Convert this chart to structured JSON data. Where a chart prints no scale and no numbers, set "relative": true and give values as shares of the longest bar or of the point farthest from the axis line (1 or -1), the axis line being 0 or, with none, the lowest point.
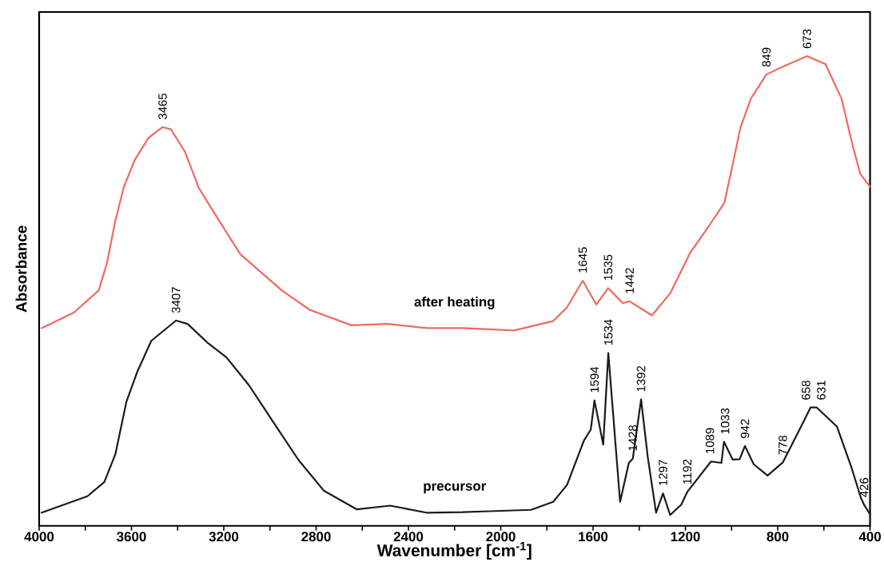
{
  "chart_data": {
    "type": "line",
    "relative": true,
    "xlabel": "Wavenumber [cm$^{-1}$]",
    "ylabel": "Absorbance",
    "marker": "none",
    "xlim": [
      4000,
      400
    ],
    "xticks": [
      4000,
      {
        "value": 3800,
        "label": null
      },
      3600,
      {
        "value": 3400,
        "label": null
      },
      3200,
      {
        "value": 3000,
        "label": null
      },
      2800,
      {
        "value": 2600,
        "label": null
      },
      2400,
      {
        "value": 2200,
        "label": null
      },
      2000,
      {
        "value": 1800,
        "label": null
      },
      1600,
      {
        "value": 1400,
        "label": null
      },
      1200,
      {
        "value": 1000,
        "label": null
      },
      800,
      {
        "value": 600,
        "label": null
      },
      400
    ],
    "series": [
      {
        "name": "after heating",
        "color": "#ef6a60",
        "x": [
          3989,
          3850,
          3742,
          3706,
          3670,
          3634,
          3586,
          3526,
          3465,
          3429,
          3369,
          3309,
          3249,
          3128,
          2948,
          2828,
          2647,
          2491,
          2322,
          2165,
          1942,
          1773,
          1713,
          1645,
          1586,
          1535,
          1471,
          1442,
          1345,
          1266,
          1181,
          1100,
          1031,
          996,
          962,
          916,
          849,
          777,
          673,
          593,
          524,
          477,
          443,
          400
        ],
        "values": [
          0.421,
          0.454,
          0.501,
          0.56,
          0.649,
          0.72,
          0.779,
          0.826,
          0.849,
          0.844,
          0.797,
          0.72,
          0.672,
          0.578,
          0.501,
          0.46,
          0.427,
          0.43,
          0.421,
          0.421,
          0.416,
          0.436,
          0.465,
          0.522,
          0.471,
          0.506,
          0.474,
          0.478,
          0.448,
          0.495,
          0.58,
          0.637,
          0.688,
          0.767,
          0.847,
          0.91,
          0.961,
          0.978,
          1.0,
          0.983,
          0.91,
          0.813,
          0.75,
          0.722
        ]
      },
      {
        "name": "precursor",
        "color": "#1a1a1a",
        "x": [
          3989,
          3791,
          3718,
          3670,
          3622,
          3574,
          3514,
          3407,
          3357,
          3273,
          3189,
          3092,
          2972,
          2876,
          2767,
          2623,
          2479,
          2322,
          2165,
          2050,
          1869,
          1773,
          1713,
          1640,
          1610,
          1594,
          1556,
          1534,
          1483,
          1445,
          1428,
          1392,
          1363,
          1327,
          1297,
          1266,
          1218,
          1192,
          1089,
          1044,
          1033,
          995,
          965,
          942,
          904,
          844,
          778,
          687,
          658,
          631,
          543,
          483,
          440,
          426,
          400
        ],
        "values": [
          0.028,
          0.063,
          0.093,
          0.152,
          0.264,
          0.329,
          0.394,
          0.437,
          0.43,
          0.391,
          0.359,
          0.3,
          0.211,
          0.14,
          0.075,
          0.035,
          0.043,
          0.028,
          0.029,
          0.031,
          0.034,
          0.051,
          0.087,
          0.181,
          0.205,
          0.267,
          0.173,
          0.368,
          0.051,
          0.134,
          0.143,
          0.269,
          0.146,
          0.028,
          0.069,
          0.023,
          0.045,
          0.072,
          0.137,
          0.134,
          0.179,
          0.141,
          0.142,
          0.17,
          0.131,
          0.107,
          0.135,
          0.223,
          0.252,
          0.252,
          0.211,
          0.128,
          0.06,
          0.045,
          0.025
        ]
      }
    ],
    "annotations": [
      {
        "text": "3465",
        "x": 3465,
        "y": 0.849
      },
      {
        "text": "1645",
        "x": 1645,
        "y": 0.522
      },
      {
        "text": "1535",
        "x": 1535,
        "y": 0.506
      },
      {
        "text": "1442",
        "x": 1442,
        "y": 0.478
      },
      {
        "text": "849",
        "x": 849,
        "y": 0.961
      },
      {
        "text": "673",
        "x": 673,
        "y": 1.0
      },
      {
        "text": "3407",
        "x": 3407,
        "y": 0.437
      },
      {
        "text": "1594",
        "x": 1594,
        "y": 0.267
      },
      {
        "text": "1534",
        "x": 1534,
        "y": 0.368
      },
      {
        "text": "1428",
        "x": 1428,
        "y": 0.143
      },
      {
        "text": "1392",
        "x": 1392,
        "y": 0.269
      },
      {
        "text": "1297",
        "x": 1297,
        "y": 0.069
      },
      {
        "text": "1192",
        "x": 1192,
        "y": 0.072
      },
      {
        "text": "1089",
        "x": 1089,
        "y": 0.137
      },
      {
        "text": "1033",
        "x": 1033,
        "y": 0.179
      },
      {
        "text": "942",
        "x": 942,
        "y": 0.17
      },
      {
        "text": "778",
        "x": 778,
        "y": 0.135
      },
      {
        "text": "658",
        "x": 658,
        "y": 0.252
      },
      {
        "text": "631",
        "x": 631,
        "y": 0.252
      },
      {
        "text": "426",
        "x": 426,
        "y": 0.045
      }
    ]
  }
}
